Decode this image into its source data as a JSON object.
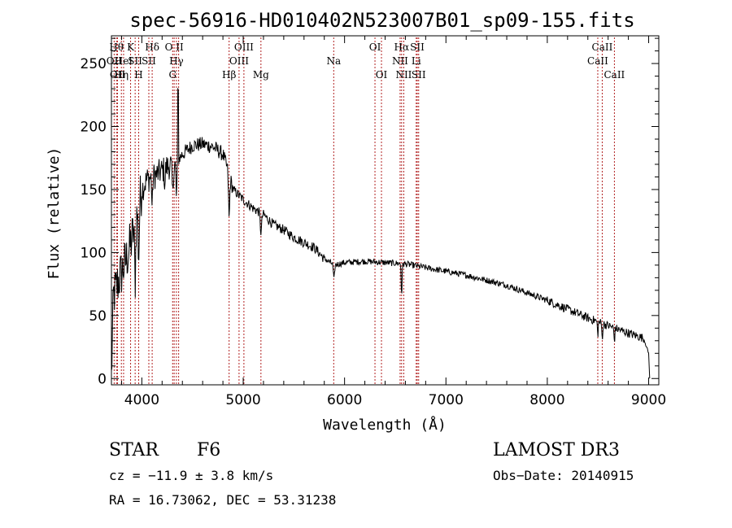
{
  "chart_data": {
    "type": "line",
    "title": "spec-56916-HD010402N523007B01_sp09-155.fits",
    "xlabel": "Wavelength (Å)",
    "ylabel": "Flux (relative)",
    "xlim": [
      3700,
      9100
    ],
    "ylim": [
      -5,
      272
    ],
    "xticks": [
      4000,
      5000,
      6000,
      7000,
      8000,
      9000
    ],
    "yticks": [
      0,
      50,
      100,
      150,
      200,
      250
    ],
    "spectrum_anchors": [
      {
        "x": 3700,
        "y": 0
      },
      {
        "x": 3720,
        "y": 65
      },
      {
        "x": 3780,
        "y": 80
      },
      {
        "x": 3850,
        "y": 95
      },
      {
        "x": 3900,
        "y": 110
      },
      {
        "x": 3950,
        "y": 130
      },
      {
        "x": 4000,
        "y": 150
      },
      {
        "x": 4050,
        "y": 158
      },
      {
        "x": 4100,
        "y": 160
      },
      {
        "x": 4150,
        "y": 162
      },
      {
        "x": 4200,
        "y": 165
      },
      {
        "x": 4250,
        "y": 168
      },
      {
        "x": 4300,
        "y": 170
      },
      {
        "x": 4340,
        "y": 172
      },
      {
        "x": 4400,
        "y": 178
      },
      {
        "x": 4500,
        "y": 185
      },
      {
        "x": 4600,
        "y": 186
      },
      {
        "x": 4700,
        "y": 184
      },
      {
        "x": 4800,
        "y": 178
      },
      {
        "x": 4850,
        "y": 165
      },
      {
        "x": 4900,
        "y": 150
      },
      {
        "x": 5000,
        "y": 142
      },
      {
        "x": 5100,
        "y": 135
      },
      {
        "x": 5200,
        "y": 130
      },
      {
        "x": 5300,
        "y": 122
      },
      {
        "x": 5400,
        "y": 118
      },
      {
        "x": 5500,
        "y": 112
      },
      {
        "x": 5600,
        "y": 108
      },
      {
        "x": 5700,
        "y": 104
      },
      {
        "x": 5800,
        "y": 95
      },
      {
        "x": 5900,
        "y": 90
      },
      {
        "x": 6000,
        "y": 92
      },
      {
        "x": 6200,
        "y": 93
      },
      {
        "x": 6400,
        "y": 92
      },
      {
        "x": 6600,
        "y": 91
      },
      {
        "x": 6800,
        "y": 88
      },
      {
        "x": 7000,
        "y": 85
      },
      {
        "x": 7200,
        "y": 82
      },
      {
        "x": 7400,
        "y": 78
      },
      {
        "x": 7600,
        "y": 74
      },
      {
        "x": 7800,
        "y": 68
      },
      {
        "x": 8000,
        "y": 62
      },
      {
        "x": 8200,
        "y": 55
      },
      {
        "x": 8400,
        "y": 48
      },
      {
        "x": 8600,
        "y": 42
      },
      {
        "x": 8800,
        "y": 36
      },
      {
        "x": 8950,
        "y": 32
      },
      {
        "x": 9000,
        "y": 20
      },
      {
        "x": 9010,
        "y": 0
      }
    ],
    "absorption_features": [
      {
        "x": 3934,
        "depth": 45,
        "width": 8
      },
      {
        "x": 3969,
        "depth": 40,
        "width": 8
      },
      {
        "x": 4102,
        "depth": 25,
        "width": 6
      },
      {
        "x": 4227,
        "depth": 12,
        "width": 6
      },
      {
        "x": 4305,
        "depth": 22,
        "width": 10
      },
      {
        "x": 4341,
        "depth": 30,
        "width": 6
      },
      {
        "x": 4861,
        "depth": 35,
        "width": 8
      },
      {
        "x": 5175,
        "depth": 15,
        "width": 10
      },
      {
        "x": 5895,
        "depth": 12,
        "width": 8
      },
      {
        "x": 6563,
        "depth": 25,
        "width": 6
      },
      {
        "x": 8498,
        "depth": 10,
        "width": 6
      },
      {
        "x": 8542,
        "depth": 12,
        "width": 6
      },
      {
        "x": 8662,
        "depth": 10,
        "width": 6
      }
    ],
    "emission_spikes": [
      {
        "x": 4358,
        "height": 52
      }
    ],
    "line_markers": [
      {
        "x": 3727,
        "label": "OII",
        "row": 2
      },
      {
        "x": 3750,
        "label": "Hθ",
        "row": 1
      },
      {
        "x": 3760,
        "label": "OII",
        "row": 3
      },
      {
        "x": 3798,
        "label": "Hη",
        "row": 3
      },
      {
        "x": 3820,
        "label": "HeI",
        "row": 2
      },
      {
        "x": 3889,
        "label": "K",
        "row": 1
      },
      {
        "x": 3934,
        "label": "SII",
        "row": 2
      },
      {
        "x": 3969,
        "label": "H",
        "row": 3
      },
      {
        "x": 4069,
        "label": "SII",
        "row": 2
      },
      {
        "x": 4102,
        "label": "Hδ",
        "row": 1
      },
      {
        "x": 4304,
        "label": "G",
        "row": 3
      },
      {
        "x": 4319,
        "label": "O II",
        "row": 1
      },
      {
        "x": 4341,
        "label": "Hγ",
        "row": 2
      },
      {
        "x": 4363,
        "label": "",
        "row": 0
      },
      {
        "x": 4861,
        "label": "Hβ",
        "row": 3
      },
      {
        "x": 4959,
        "label": "OIII",
        "row": 2
      },
      {
        "x": 5007,
        "label": "OIII",
        "row": 1
      },
      {
        "x": 5175,
        "label": "Mg",
        "row": 3
      },
      {
        "x": 5893,
        "label": "Na",
        "row": 2
      },
      {
        "x": 6300,
        "label": "OI",
        "row": 1
      },
      {
        "x": 6364,
        "label": "OI",
        "row": 3
      },
      {
        "x": 6548,
        "label": "NII",
        "row": 2
      },
      {
        "x": 6563,
        "label": "Hα",
        "row": 1
      },
      {
        "x": 6584,
        "label": "NII",
        "row": 3
      },
      {
        "x": 6707,
        "label": "Li",
        "row": 2
      },
      {
        "x": 6717,
        "label": "SII",
        "row": 1
      },
      {
        "x": 6731,
        "label": "SII",
        "row": 3
      },
      {
        "x": 8498,
        "label": "CaII",
        "row": 2
      },
      {
        "x": 8542,
        "label": "CaII",
        "row": 1
      },
      {
        "x": 8662,
        "label": "CaII",
        "row": 3
      }
    ]
  },
  "info": {
    "object_class": "STAR",
    "subclass": "F6",
    "survey": "LAMOST DR3",
    "velocity": "cz = −11.9 ± 3.8 km/s",
    "obs_date": "Obs−Date: 20140915",
    "coordinates": "RA =  16.73062, DEC =  53.31238"
  },
  "colors": {
    "spectrum": "#000000",
    "marker": "#b22222",
    "background": "#ffffff"
  }
}
